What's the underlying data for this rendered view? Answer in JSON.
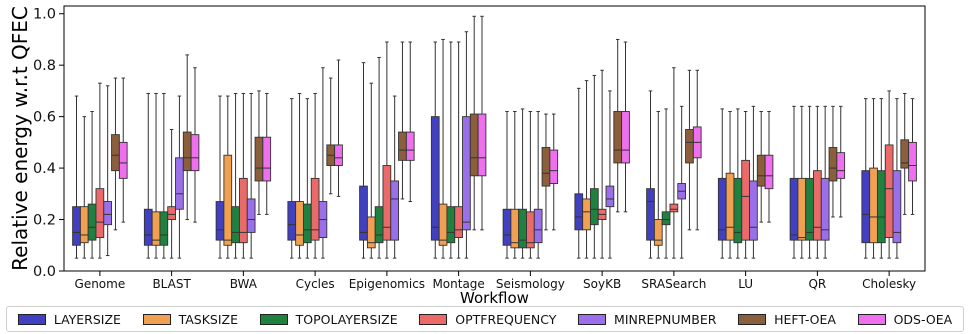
{
  "chart_data": {
    "type": "box",
    "ylabel": "Relative energy w.r.t QFEC",
    "xlabel": "Workflow",
    "ylim": [
      0.0,
      1.03
    ],
    "yticks": [
      "0.0",
      "0.2",
      "0.4",
      "0.6",
      "0.8",
      "1.0"
    ],
    "grid": false,
    "legend_position": "bottom",
    "categories": [
      "Genome",
      "BLAST",
      "BWA",
      "Cycles",
      "Epigenomics",
      "Montage",
      "Seismology",
      "SoyKB",
      "SRASearch",
      "LU",
      "QR",
      "Cholesky"
    ],
    "series": [
      {
        "name": "LAYERSIZE",
        "color": "#4040c0",
        "stats": [
          [
            0.05,
            0.1,
            0.15,
            0.25,
            0.68
          ],
          [
            0.05,
            0.1,
            0.14,
            0.24,
            0.69
          ],
          [
            0.05,
            0.12,
            0.16,
            0.27,
            0.68
          ],
          [
            0.05,
            0.12,
            0.18,
            0.27,
            0.67
          ],
          [
            0.05,
            0.12,
            0.15,
            0.33,
            0.81
          ],
          [
            0.05,
            0.12,
            0.17,
            0.6,
            0.89
          ],
          [
            0.05,
            0.1,
            0.14,
            0.24,
            0.62
          ],
          [
            0.05,
            0.16,
            0.21,
            0.3,
            0.71
          ],
          [
            0.05,
            0.12,
            0.27,
            0.32,
            0.7
          ],
          [
            0.05,
            0.12,
            0.16,
            0.36,
            0.63
          ],
          [
            0.05,
            0.12,
            0.14,
            0.36,
            0.64
          ],
          [
            0.05,
            0.11,
            0.22,
            0.39,
            0.67
          ]
        ]
      },
      {
        "name": "TASKSIZE",
        "color": "#f0a050",
        "stats": [
          [
            0.05,
            0.11,
            0.14,
            0.25,
            0.6
          ],
          [
            0.05,
            0.1,
            0.12,
            0.23,
            0.69
          ],
          [
            0.05,
            0.1,
            0.12,
            0.45,
            0.68
          ],
          [
            0.05,
            0.1,
            0.14,
            0.27,
            0.69
          ],
          [
            0.05,
            0.09,
            0.11,
            0.21,
            0.73
          ],
          [
            0.05,
            0.1,
            0.12,
            0.26,
            0.9
          ],
          [
            0.05,
            0.09,
            0.11,
            0.24,
            0.62
          ],
          [
            0.05,
            0.16,
            0.23,
            0.28,
            0.74
          ],
          [
            0.05,
            0.1,
            0.12,
            0.2,
            0.62
          ],
          [
            0.05,
            0.12,
            0.17,
            0.38,
            0.62
          ],
          [
            0.05,
            0.12,
            0.13,
            0.36,
            0.64
          ],
          [
            0.05,
            0.11,
            0.21,
            0.4,
            0.67
          ]
        ]
      },
      {
        "name": "TOPOLAYERSIZE",
        "color": "#208040",
        "stats": [
          [
            0.05,
            0.12,
            0.17,
            0.26,
            0.62
          ],
          [
            0.05,
            0.1,
            0.14,
            0.23,
            0.69
          ],
          [
            0.05,
            0.11,
            0.15,
            0.25,
            0.69
          ],
          [
            0.05,
            0.11,
            0.16,
            0.26,
            0.67
          ],
          [
            0.05,
            0.11,
            0.14,
            0.25,
            0.83
          ],
          [
            0.05,
            0.11,
            0.15,
            0.25,
            0.89
          ],
          [
            0.05,
            0.09,
            0.12,
            0.24,
            0.63
          ],
          [
            0.05,
            0.18,
            0.24,
            0.32,
            0.76
          ],
          [
            0.05,
            0.18,
            0.2,
            0.23,
            0.63
          ],
          [
            0.05,
            0.11,
            0.15,
            0.36,
            0.63
          ],
          [
            0.05,
            0.12,
            0.15,
            0.36,
            0.64
          ],
          [
            0.05,
            0.11,
            0.21,
            0.39,
            0.67
          ]
        ]
      },
      {
        "name": "OPTFREQUENCY",
        "color": "#ea6a6a",
        "stats": [
          [
            0.05,
            0.13,
            0.19,
            0.32,
            0.73
          ],
          [
            0.05,
            0.2,
            0.22,
            0.25,
            0.55
          ],
          [
            0.05,
            0.11,
            0.15,
            0.36,
            0.69
          ],
          [
            0.05,
            0.12,
            0.16,
            0.36,
            0.69
          ],
          [
            0.05,
            0.12,
            0.17,
            0.41,
            0.89
          ],
          [
            0.05,
            0.13,
            0.16,
            0.25,
            0.89
          ],
          [
            0.05,
            0.09,
            0.11,
            0.23,
            0.62
          ],
          [
            0.05,
            0.2,
            0.22,
            0.24,
            0.78
          ],
          [
            0.05,
            0.23,
            0.24,
            0.26,
            0.79
          ],
          [
            0.05,
            0.12,
            0.29,
            0.43,
            0.62
          ],
          [
            0.05,
            0.12,
            0.17,
            0.39,
            0.64
          ],
          [
            0.05,
            0.13,
            0.32,
            0.49,
            0.7
          ]
        ]
      },
      {
        "name": "MINREPNUMBER",
        "color": "#9a70ea",
        "stats": [
          [
            0.06,
            0.18,
            0.22,
            0.27,
            0.72
          ],
          [
            0.05,
            0.24,
            0.3,
            0.44,
            0.68
          ],
          [
            0.05,
            0.15,
            0.2,
            0.28,
            0.69
          ],
          [
            0.05,
            0.13,
            0.2,
            0.27,
            0.79
          ],
          [
            0.05,
            0.12,
            0.28,
            0.35,
            0.68
          ],
          [
            0.05,
            0.16,
            0.19,
            0.6,
            0.93
          ],
          [
            0.05,
            0.11,
            0.16,
            0.24,
            0.62
          ],
          [
            0.05,
            0.25,
            0.28,
            0.33,
            0.7
          ],
          [
            0.05,
            0.28,
            0.31,
            0.34,
            0.64
          ],
          [
            0.05,
            0.12,
            0.17,
            0.35,
            0.64
          ],
          [
            0.05,
            0.12,
            0.16,
            0.36,
            0.64
          ],
          [
            0.05,
            0.11,
            0.15,
            0.39,
            0.67
          ]
        ]
      },
      {
        "name": "HEFT-OEA",
        "color": "#8b5e3c",
        "stats": [
          [
            0.16,
            0.39,
            0.45,
            0.53,
            0.75
          ],
          [
            0.2,
            0.39,
            0.44,
            0.54,
            0.84
          ],
          [
            0.22,
            0.35,
            0.4,
            0.52,
            0.7
          ],
          [
            0.3,
            0.41,
            0.45,
            0.49,
            0.75
          ],
          [
            0.28,
            0.43,
            0.47,
            0.54,
            0.89
          ],
          [
            0.16,
            0.37,
            0.44,
            0.61,
            0.99
          ],
          [
            0.16,
            0.33,
            0.38,
            0.48,
            0.61
          ],
          [
            0.23,
            0.42,
            0.47,
            0.62,
            0.9
          ],
          [
            0.16,
            0.42,
            0.5,
            0.55,
            0.78
          ],
          [
            0.19,
            0.33,
            0.37,
            0.45,
            0.62
          ],
          [
            0.21,
            0.35,
            0.4,
            0.48,
            0.64
          ],
          [
            0.22,
            0.4,
            0.42,
            0.51,
            0.69
          ]
        ]
      },
      {
        "name": "ODS-OEA",
        "color": "#ee70ee",
        "stats": [
          [
            0.19,
            0.36,
            0.42,
            0.5,
            0.75
          ],
          [
            0.19,
            0.39,
            0.44,
            0.53,
            0.79
          ],
          [
            0.22,
            0.35,
            0.4,
            0.52,
            0.69
          ],
          [
            0.29,
            0.41,
            0.44,
            0.49,
            0.82
          ],
          [
            0.27,
            0.43,
            0.47,
            0.54,
            0.89
          ],
          [
            0.16,
            0.37,
            0.44,
            0.61,
            0.99
          ],
          [
            0.16,
            0.34,
            0.39,
            0.47,
            0.61
          ],
          [
            0.23,
            0.42,
            0.47,
            0.62,
            0.89
          ],
          [
            0.16,
            0.44,
            0.5,
            0.56,
            0.78
          ],
          [
            0.19,
            0.32,
            0.37,
            0.45,
            0.62
          ],
          [
            0.21,
            0.36,
            0.39,
            0.46,
            0.64
          ],
          [
            0.22,
            0.35,
            0.41,
            0.5,
            0.67
          ]
        ]
      }
    ]
  }
}
